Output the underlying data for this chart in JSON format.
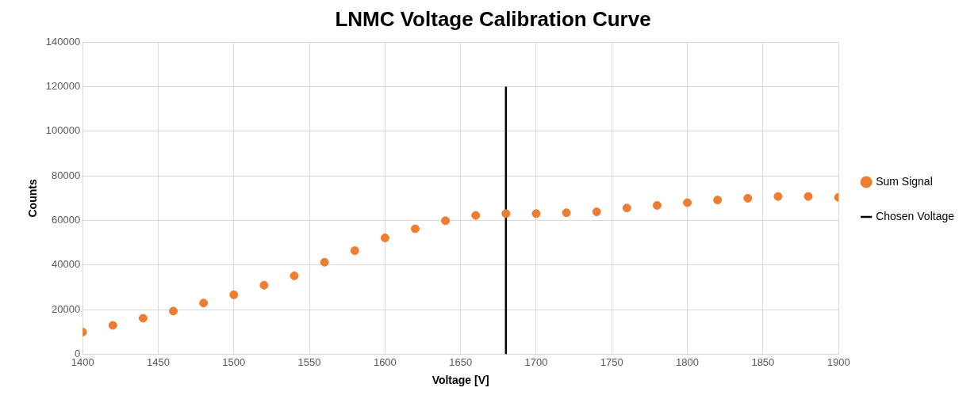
{
  "chart_data": {
    "type": "scatter",
    "title": "LNMC Voltage Calibration Curve",
    "xlabel": "Voltage [V]",
    "ylabel": "Counts",
    "x": [
      1400,
      1420,
      1440,
      1460,
      1480,
      1500,
      1520,
      1540,
      1560,
      1580,
      1600,
      1620,
      1640,
      1660,
      1680,
      1700,
      1720,
      1740,
      1760,
      1780,
      1800,
      1820,
      1840,
      1860,
      1880,
      1900
    ],
    "series": [
      {
        "name": "Sum Signal",
        "color": "#ed7d31",
        "marker": "circle",
        "values": [
          10000,
          13000,
          16200,
          19400,
          23000,
          26700,
          31000,
          35200,
          41300,
          46500,
          52200,
          56300,
          59900,
          62300,
          63100,
          63100,
          63500,
          63900,
          65600,
          66800,
          68000,
          69200,
          70000,
          70800,
          70800,
          70400
        ]
      },
      {
        "name": "Chosen Voltage",
        "type": "line",
        "color": "#000000",
        "marker": "none",
        "x": [
          1680,
          1680
        ],
        "values": [
          0,
          120000
        ]
      }
    ],
    "xlim": [
      1400,
      1900
    ],
    "xticks": [
      1400,
      1450,
      1500,
      1550,
      1600,
      1650,
      1700,
      1750,
      1800,
      1850,
      1900
    ],
    "ylim": [
      0,
      140000
    ],
    "yticks": [
      0,
      20000,
      40000,
      60000,
      80000,
      100000,
      120000,
      140000
    ],
    "grid": true,
    "legend": "right"
  }
}
